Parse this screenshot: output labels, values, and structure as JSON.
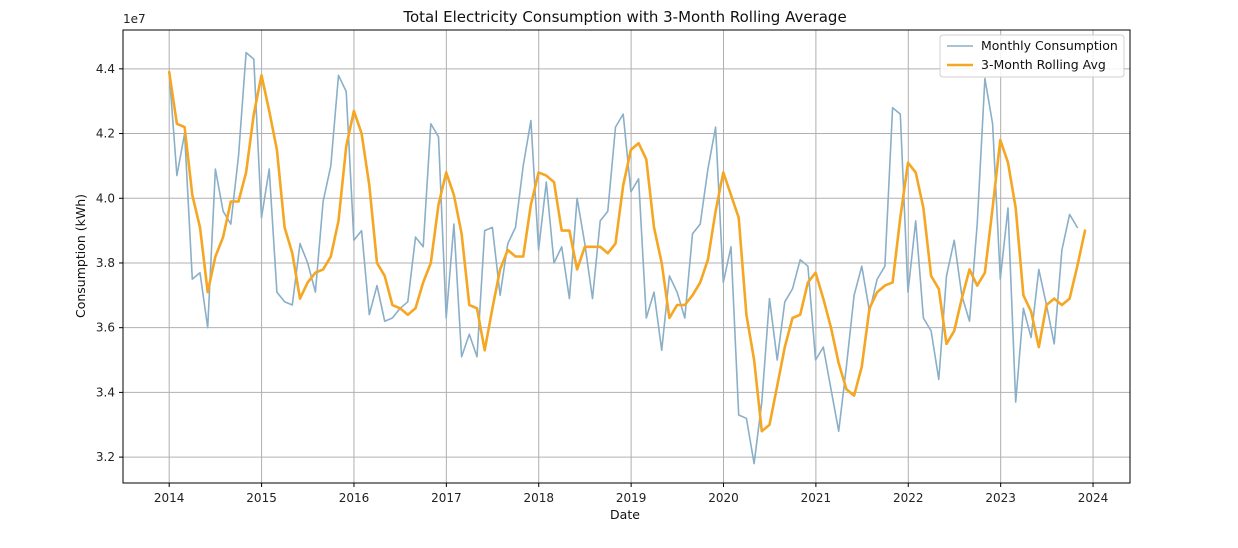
{
  "chart_data": {
    "type": "line",
    "title": "Total Electricity Consumption with 3-Month Rolling Average",
    "xlabel": "Date",
    "ylabel": "Consumption (kWh)",
    "y_scale_label": "1e7",
    "xlim": [
      2013.5,
      2024.4
    ],
    "ylim": [
      3.12,
      4.52
    ],
    "x_ticks": [
      2014,
      2015,
      2016,
      2017,
      2018,
      2019,
      2020,
      2021,
      2022,
      2023,
      2024
    ],
    "x_tick_labels": [
      "2014",
      "2015",
      "2016",
      "2017",
      "2018",
      "2019",
      "2020",
      "2021",
      "2022",
      "2023",
      "2024"
    ],
    "y_ticks": [
      3.2,
      3.4,
      3.6,
      3.8,
      4.0,
      4.2,
      4.4
    ],
    "y_tick_labels": [
      "3.2",
      "3.4",
      "3.6",
      "3.8",
      "4.0",
      "4.2",
      "4.4"
    ],
    "grid": true,
    "legend_position": "top-right",
    "series": [
      {
        "name": "Monthly Consumption",
        "color": "#8aafc8",
        "x_start": 2014,
        "x_step": 0.0833,
        "values": [
          4.39,
          4.07,
          4.2,
          3.75,
          3.77,
          3.6,
          4.09,
          3.96,
          3.92,
          4.13,
          4.45,
          4.43,
          3.94,
          4.09,
          3.71,
          3.68,
          3.67,
          3.86,
          3.8,
          3.71,
          3.99,
          4.1,
          4.38,
          4.33,
          3.87,
          3.9,
          3.64,
          3.73,
          3.62,
          3.63,
          3.66,
          3.68,
          3.88,
          3.85,
          4.23,
          4.19,
          3.63,
          3.92,
          3.51,
          3.58,
          3.51,
          3.9,
          3.91,
          3.7,
          3.86,
          3.91,
          4.1,
          4.24,
          3.84,
          4.05,
          3.8,
          3.85,
          3.69,
          4.0,
          3.86,
          3.69,
          3.93,
          3.96,
          4.22,
          4.26,
          4.02,
          4.06,
          3.63,
          3.71,
          3.53,
          3.76,
          3.71,
          3.63,
          3.89,
          3.92,
          4.09,
          4.22,
          3.74,
          3.85,
          3.33,
          3.32,
          3.18,
          3.37,
          3.69,
          3.5,
          3.68,
          3.72,
          3.81,
          3.79,
          3.5,
          3.54,
          3.41,
          3.28,
          3.48,
          3.7,
          3.79,
          3.65,
          3.75,
          3.79,
          4.28,
          4.26,
          3.71,
          3.93,
          3.63,
          3.59,
          3.44,
          3.76,
          3.87,
          3.7,
          3.62,
          3.92,
          4.37,
          4.23,
          3.75,
          3.97,
          3.37,
          3.66,
          3.57,
          3.78,
          3.67,
          3.55,
          3.84,
          3.95,
          3.91
        ]
      },
      {
        "name": "3-Month Rolling Avg",
        "color": "#f5a623",
        "x_start": 2014,
        "x_step": 0.0833,
        "values": [
          4.39,
          4.23,
          4.22,
          4.01,
          3.91,
          3.71,
          3.82,
          3.88,
          3.99,
          3.99,
          4.08,
          4.26,
          4.38,
          4.27,
          4.15,
          3.91,
          3.83,
          3.69,
          3.74,
          3.77,
          3.78,
          3.82,
          3.93,
          4.16,
          4.27,
          4.2,
          4.04,
          3.8,
          3.76,
          3.67,
          3.66,
          3.64,
          3.66,
          3.74,
          3.8,
          3.98,
          4.08,
          4.01,
          3.89,
          3.67,
          3.66,
          3.53,
          3.66,
          3.78,
          3.84,
          3.82,
          3.82,
          3.98,
          4.08,
          4.07,
          4.05,
          3.9,
          3.9,
          3.78,
          3.85,
          3.85,
          3.85,
          3.83,
          3.86,
          4.04,
          4.15,
          4.17,
          4.12,
          3.91,
          3.8,
          3.63,
          3.67,
          3.67,
          3.7,
          3.74,
          3.81,
          3.96,
          4.08,
          4.01,
          3.94,
          3.64,
          3.5,
          3.28,
          3.3,
          3.42,
          3.54,
          3.63,
          3.64,
          3.74,
          3.77,
          3.69,
          3.6,
          3.49,
          3.41,
          3.39,
          3.48,
          3.66,
          3.71,
          3.73,
          3.74,
          3.94,
          4.11,
          4.08,
          3.97,
          3.76,
          3.72,
          3.55,
          3.59,
          3.69,
          3.78,
          3.73,
          3.77,
          3.97,
          4.18,
          4.11,
          3.97,
          3.7,
          3.65,
          3.54,
          3.67,
          3.69,
          3.67,
          3.69,
          3.79,
          3.9
        ]
      }
    ]
  }
}
